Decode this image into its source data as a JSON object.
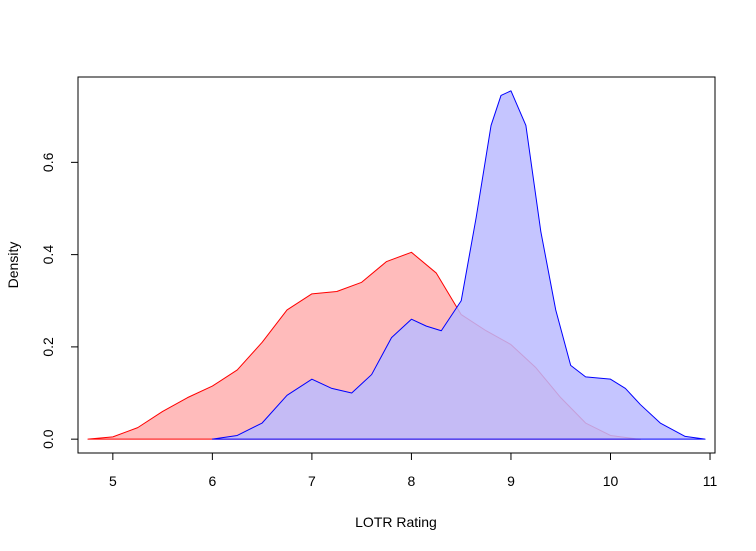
{
  "chart_data": {
    "type": "area",
    "title": "",
    "xlabel": "LOTR Rating",
    "ylabel": "Density",
    "xlim": [
      4.65,
      11.05
    ],
    "ylim": [
      -0.03,
      0.785
    ],
    "xticks": [
      5,
      6,
      7,
      8,
      9,
      10,
      11
    ],
    "yticks": [
      0.0,
      0.2,
      0.4,
      0.6
    ],
    "ytick_labels": [
      "0.0",
      "0.2",
      "0.4",
      "0.6"
    ],
    "grid": false,
    "legend": "none",
    "series": [
      {
        "fill": "#ffbbbb",
        "stroke": "#ff0000",
        "x": [
          4.75,
          5.0,
          5.25,
          5.5,
          5.75,
          6.0,
          6.25,
          6.5,
          6.75,
          7.0,
          7.25,
          7.5,
          7.75,
          8.0,
          8.25,
          8.5,
          8.75,
          9.0,
          9.25,
          9.5,
          9.75,
          10.0,
          10.25,
          10.3
        ],
        "y": [
          0.0,
          0.005,
          0.025,
          0.06,
          0.09,
          0.115,
          0.15,
          0.21,
          0.28,
          0.315,
          0.32,
          0.34,
          0.385,
          0.405,
          0.36,
          0.27,
          0.235,
          0.205,
          0.155,
          0.09,
          0.035,
          0.008,
          0.001,
          0.0
        ]
      },
      {
        "fill": "#bbbbff",
        "stroke": "#0000ff",
        "x": [
          6.0,
          6.25,
          6.5,
          6.75,
          7.0,
          7.2,
          7.4,
          7.6,
          7.8,
          8.0,
          8.15,
          8.3,
          8.5,
          8.65,
          8.8,
          8.9,
          9.0,
          9.15,
          9.3,
          9.45,
          9.6,
          9.75,
          10.0,
          10.15,
          10.3,
          10.5,
          10.75,
          10.95
        ],
        "y": [
          0.0,
          0.008,
          0.035,
          0.095,
          0.13,
          0.11,
          0.1,
          0.14,
          0.22,
          0.26,
          0.245,
          0.235,
          0.3,
          0.48,
          0.68,
          0.745,
          0.755,
          0.68,
          0.45,
          0.28,
          0.16,
          0.135,
          0.13,
          0.11,
          0.075,
          0.035,
          0.006,
          0.0
        ]
      }
    ]
  }
}
